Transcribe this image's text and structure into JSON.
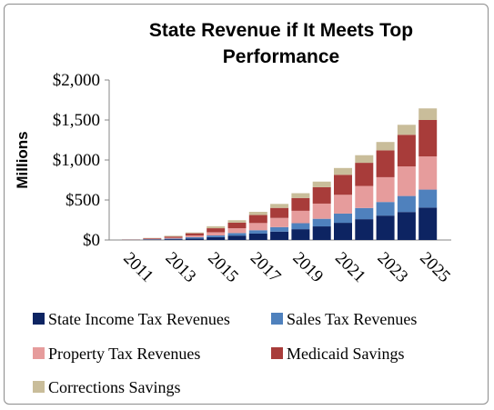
{
  "chart_data": {
    "type": "bar",
    "stacked": true,
    "title_lines": [
      "State Revenue if It Meets Top",
      "Performance"
    ],
    "xlabel": "",
    "ylabel": "Millions",
    "ylim": [
      0,
      2000
    ],
    "yticks": [
      0,
      500,
      1000,
      1500,
      2000
    ],
    "ytick_labels": [
      "$0",
      "$500",
      "$1,000",
      "$1,500",
      "$2,000"
    ],
    "grid": false,
    "legend_position": "bottom",
    "categories": [
      "2011",
      "2012",
      "2013",
      "2014",
      "2015",
      "2016",
      "2017",
      "2018",
      "2019",
      "2020",
      "2021",
      "2022",
      "2023",
      "2024",
      "2025"
    ],
    "tick_labels": [
      "2011",
      "2013",
      "2015",
      "2017",
      "2019",
      "2021",
      "2023",
      "2025"
    ],
    "visible_categories": [
      "2011",
      "2013",
      "2015",
      "2017",
      "2019",
      "2021",
      "2023",
      "2025"
    ],
    "series": [
      {
        "name": "State Income Tax Revenues",
        "color": "#0d2462",
        "values": [
          2,
          5,
          10,
          20,
          35,
          55,
          80,
          105,
          135,
          170,
          215,
          260,
          305,
          350,
          405
        ]
      },
      {
        "name": "Sales Tax Revenues",
        "color": "#4f81bd",
        "values": [
          1,
          4,
          8,
          14,
          22,
          32,
          42,
          56,
          75,
          95,
          115,
          140,
          170,
          200,
          225
        ]
      },
      {
        "name": "Property Tax Revenues",
        "color": "#e69c9c",
        "values": [
          1,
          5,
          10,
          22,
          40,
          60,
          90,
          115,
          155,
          190,
          235,
          275,
          310,
          370,
          415
        ]
      },
      {
        "name": "Medicaid Savings",
        "color": "#a83c3a",
        "values": [
          2,
          8,
          15,
          28,
          50,
          70,
          100,
          125,
          160,
          205,
          250,
          290,
          335,
          395,
          455
        ]
      },
      {
        "name": "Corrections Savings",
        "color": "#c9bd9a",
        "values": [
          1,
          4,
          10,
          10,
          25,
          30,
          40,
          50,
          60,
          70,
          85,
          95,
          105,
          125,
          145
        ]
      }
    ]
  }
}
